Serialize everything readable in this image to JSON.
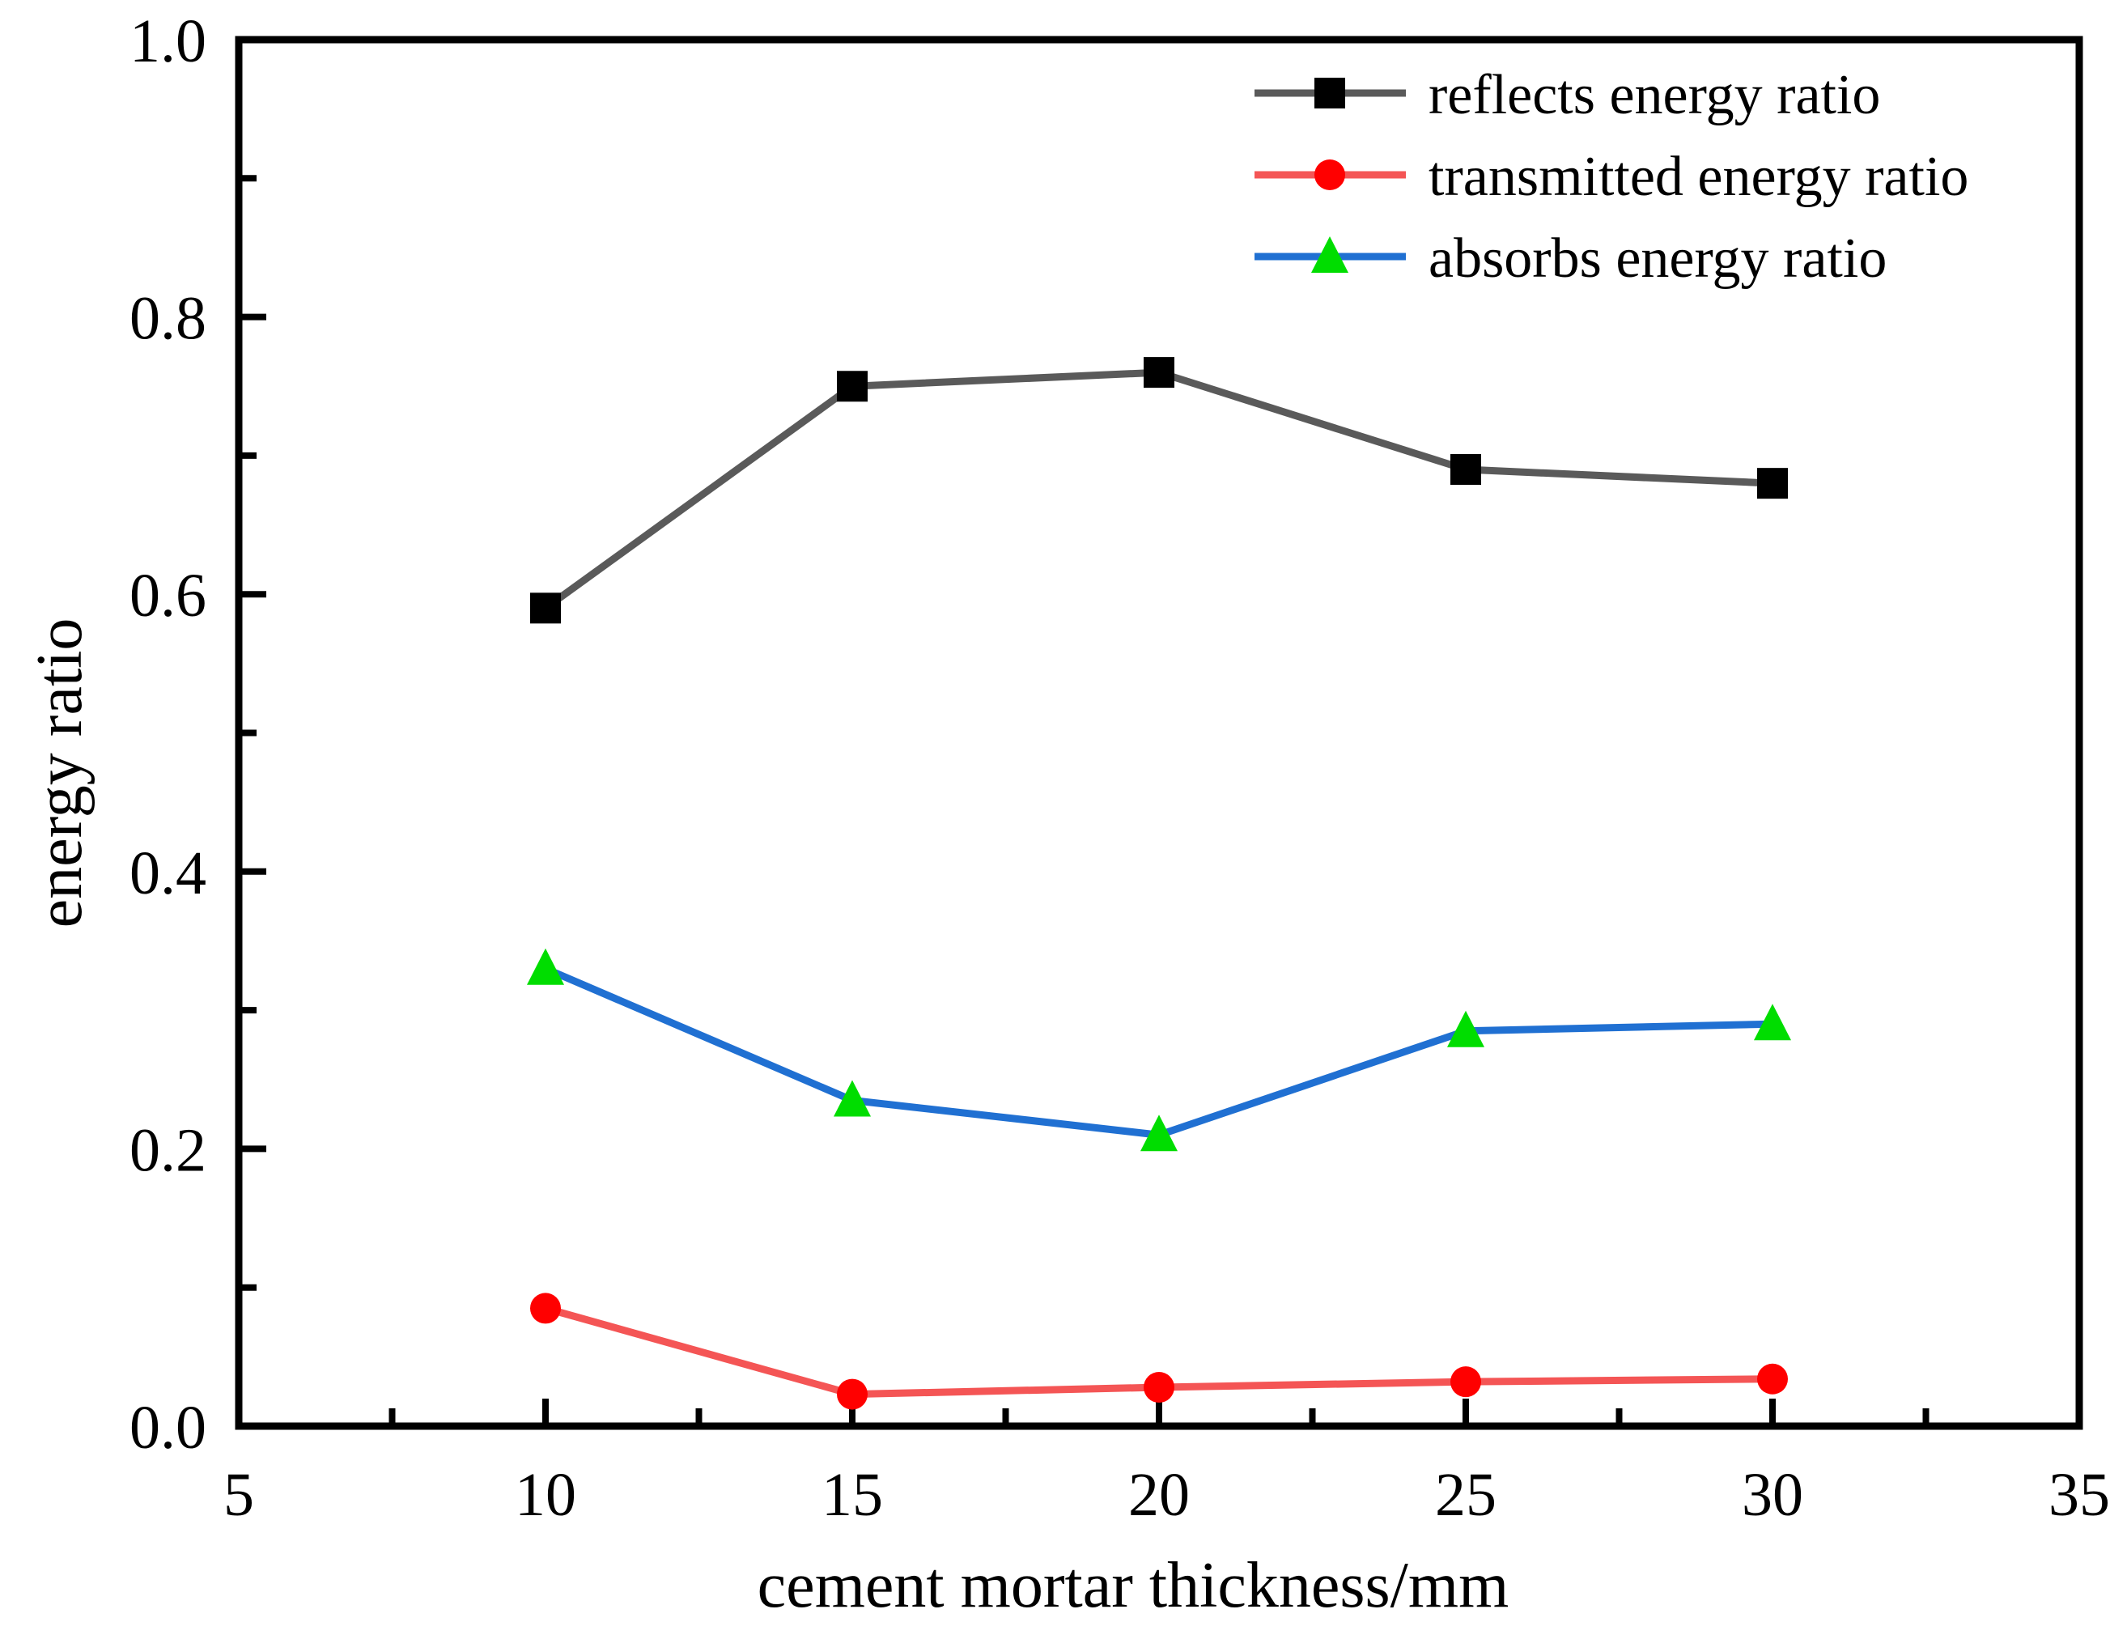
{
  "figure": {
    "background": "#ffffff",
    "frame_color": "#000000",
    "text_color": "#000000"
  },
  "chart_data": {
    "type": "line",
    "title": "",
    "xlabel": "cement mortar thickness/mm",
    "ylabel": "energy ratio",
    "xlim": [
      5,
      35
    ],
    "ylim": [
      0.0,
      1.0
    ],
    "grid": false,
    "legend_position": "top-right",
    "x_major_ticks": [
      5,
      10,
      15,
      20,
      25,
      30,
      35
    ],
    "x_tick_labels": [
      "5",
      "10",
      "15",
      "20",
      "25",
      "30",
      "35"
    ],
    "x_minor_ticks": [
      7.5,
      12.5,
      17.5,
      22.5,
      27.5,
      32.5
    ],
    "y_major_ticks": [
      0.0,
      0.2,
      0.4,
      0.6,
      0.8,
      1.0
    ],
    "y_tick_labels": [
      "0.0",
      "0.2",
      "0.4",
      "0.6",
      "0.8",
      "1.0"
    ],
    "y_minor_ticks": [
      0.1,
      0.3,
      0.5,
      0.7,
      0.9
    ],
    "x": [
      10,
      15,
      20,
      25,
      30
    ],
    "series": [
      {
        "name": "reflects energy ratio",
        "marker": "square",
        "marker_color": "#000000",
        "line_color": "#5a5a5a",
        "values": [
          0.59,
          0.75,
          0.76,
          0.69,
          0.68
        ]
      },
      {
        "name": "transmitted energy ratio",
        "marker": "circle",
        "marker_color": "#ff0000",
        "line_color": "#f45555",
        "values": [
          0.085,
          0.023,
          0.028,
          0.032,
          0.034
        ]
      },
      {
        "name": "absorbs energy ratio",
        "marker": "triangle",
        "marker_color": "#00dd00",
        "line_color": "#2070d2",
        "values": [
          0.33,
          0.235,
          0.21,
          0.285,
          0.29
        ]
      }
    ]
  }
}
